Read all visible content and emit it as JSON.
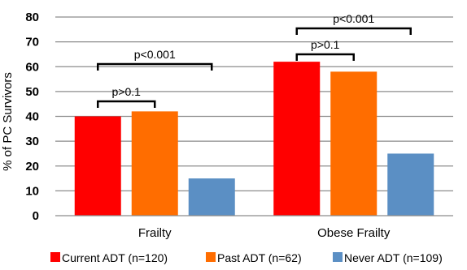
{
  "chart_data": {
    "type": "bar",
    "ylabel": "% of PC Survivors",
    "ylim": [
      0,
      80
    ],
    "yticks": [
      0,
      10,
      20,
      30,
      40,
      50,
      60,
      70,
      80
    ],
    "grid": true,
    "legend_position": "bottom",
    "categories": [
      "Frailty",
      "Obese Frailty"
    ],
    "series": [
      {
        "name": "Current ADT (n=120)",
        "color": "#ff0000",
        "values": [
          40,
          62
        ]
      },
      {
        "name": "Past ADT (n=62)",
        "color": "#ff6d00",
        "values": [
          42,
          58
        ]
      },
      {
        "name": "Never ADT (n=109)",
        "color": "#5b8fc4",
        "values": [
          15,
          25
        ]
      }
    ],
    "annotations": [
      {
        "text": "p>0.1",
        "category_index": 0,
        "from_series": 0,
        "to_series": 1
      },
      {
        "text": "p<0.001",
        "category_index": 0,
        "from_series": 0,
        "to_series": 2
      },
      {
        "text": "p>0.1",
        "category_index": 1,
        "from_series": 0,
        "to_series": 1
      },
      {
        "text": "p<0.001",
        "category_index": 1,
        "from_series": 0,
        "to_series": 2
      }
    ]
  }
}
